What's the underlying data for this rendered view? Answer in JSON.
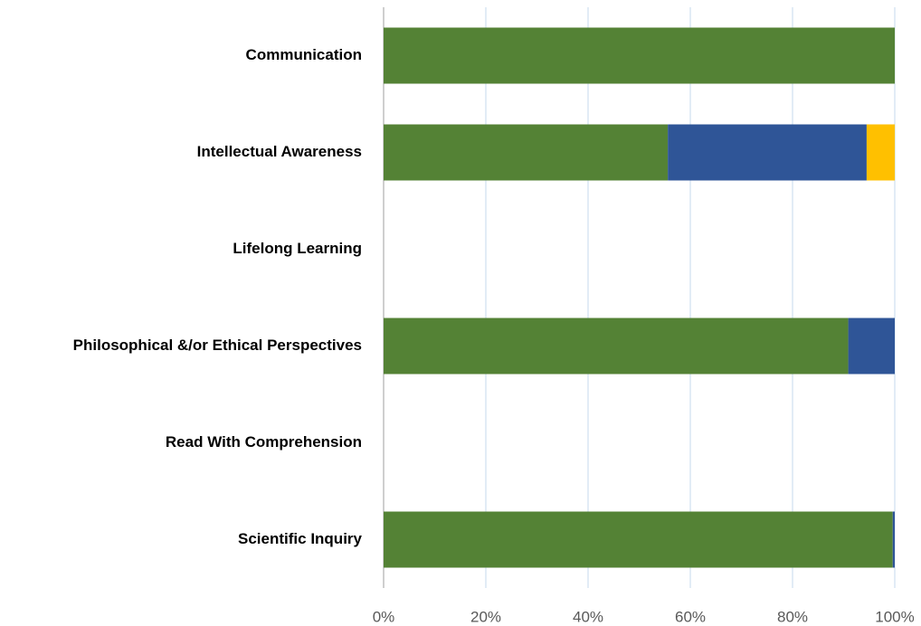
{
  "chart_data": {
    "type": "stacked-bar-horizontal",
    "categories": [
      "Communication",
      "Intellectual Awareness",
      "Lifelong Learning",
      "Philosophical &/or Ethical Perspectives",
      "Read With Comprehension",
      "Scientific Inquiry"
    ],
    "series": [
      {
        "color": "#548235",
        "values": [
          100,
          55.6,
          null,
          90.9,
          null,
          99.6
        ]
      },
      {
        "color": "#2f5597",
        "values": [
          null,
          38.9,
          null,
          9.1,
          null,
          0.4
        ]
      },
      {
        "color": "#ffc000",
        "values": [
          null,
          5.5,
          null,
          null,
          null,
          null
        ]
      }
    ],
    "xlim": [
      0,
      100
    ],
    "xticks": [
      {
        "value": 0,
        "label": "0%"
      },
      {
        "value": 20,
        "label": "20%"
      },
      {
        "value": 40,
        "label": "40%"
      },
      {
        "value": 60,
        "label": "60%"
      },
      {
        "value": 80,
        "label": "80%"
      },
      {
        "value": 100,
        "label": "100%"
      }
    ],
    "grid": true
  }
}
